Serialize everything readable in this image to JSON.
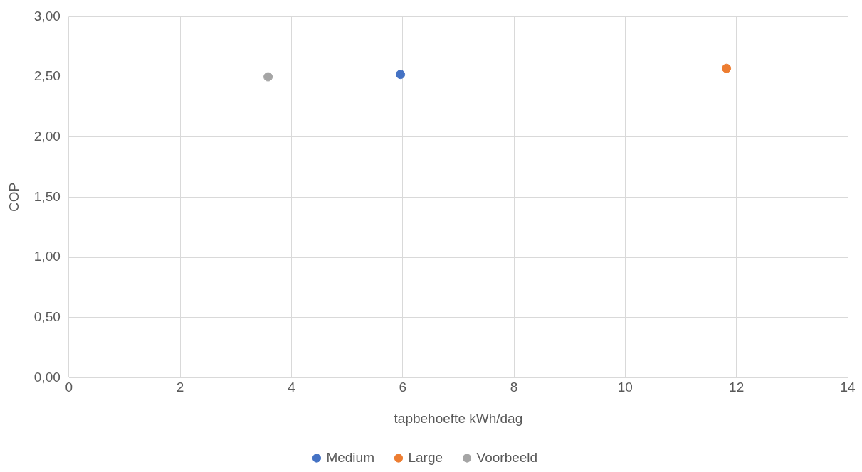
{
  "chart_data": {
    "type": "scatter",
    "xlabel": "tapbehoefte kWh/dag",
    "ylabel": "COP",
    "xlim": [
      0,
      14
    ],
    "xticks": [
      0,
      2,
      4,
      6,
      8,
      10,
      12,
      14
    ],
    "ylim": [
      0,
      3
    ],
    "yticks": [
      {
        "value": 0,
        "label": "0,00"
      },
      {
        "value": 0.5,
        "label": "0,50"
      },
      {
        "value": 1,
        "label": "1,00"
      },
      {
        "value": 1.5,
        "label": "1,50"
      },
      {
        "value": 2,
        "label": "2,00"
      },
      {
        "value": 2.5,
        "label": "2,50"
      },
      {
        "value": 3,
        "label": "3,00"
      }
    ],
    "grid": true,
    "legend": "bottom",
    "marker": "circle",
    "series": [
      {
        "name": "Medium",
        "color": "#4472c4",
        "x": [
          5.96
        ],
        "values": [
          2.52
        ]
      },
      {
        "name": "Large",
        "color": "#ed7d31",
        "x": [
          11.82
        ],
        "values": [
          2.57
        ]
      },
      {
        "name": "Voorbeeld",
        "color": "#a5a5a5",
        "x": [
          3.58
        ],
        "values": [
          2.5
        ]
      }
    ]
  }
}
